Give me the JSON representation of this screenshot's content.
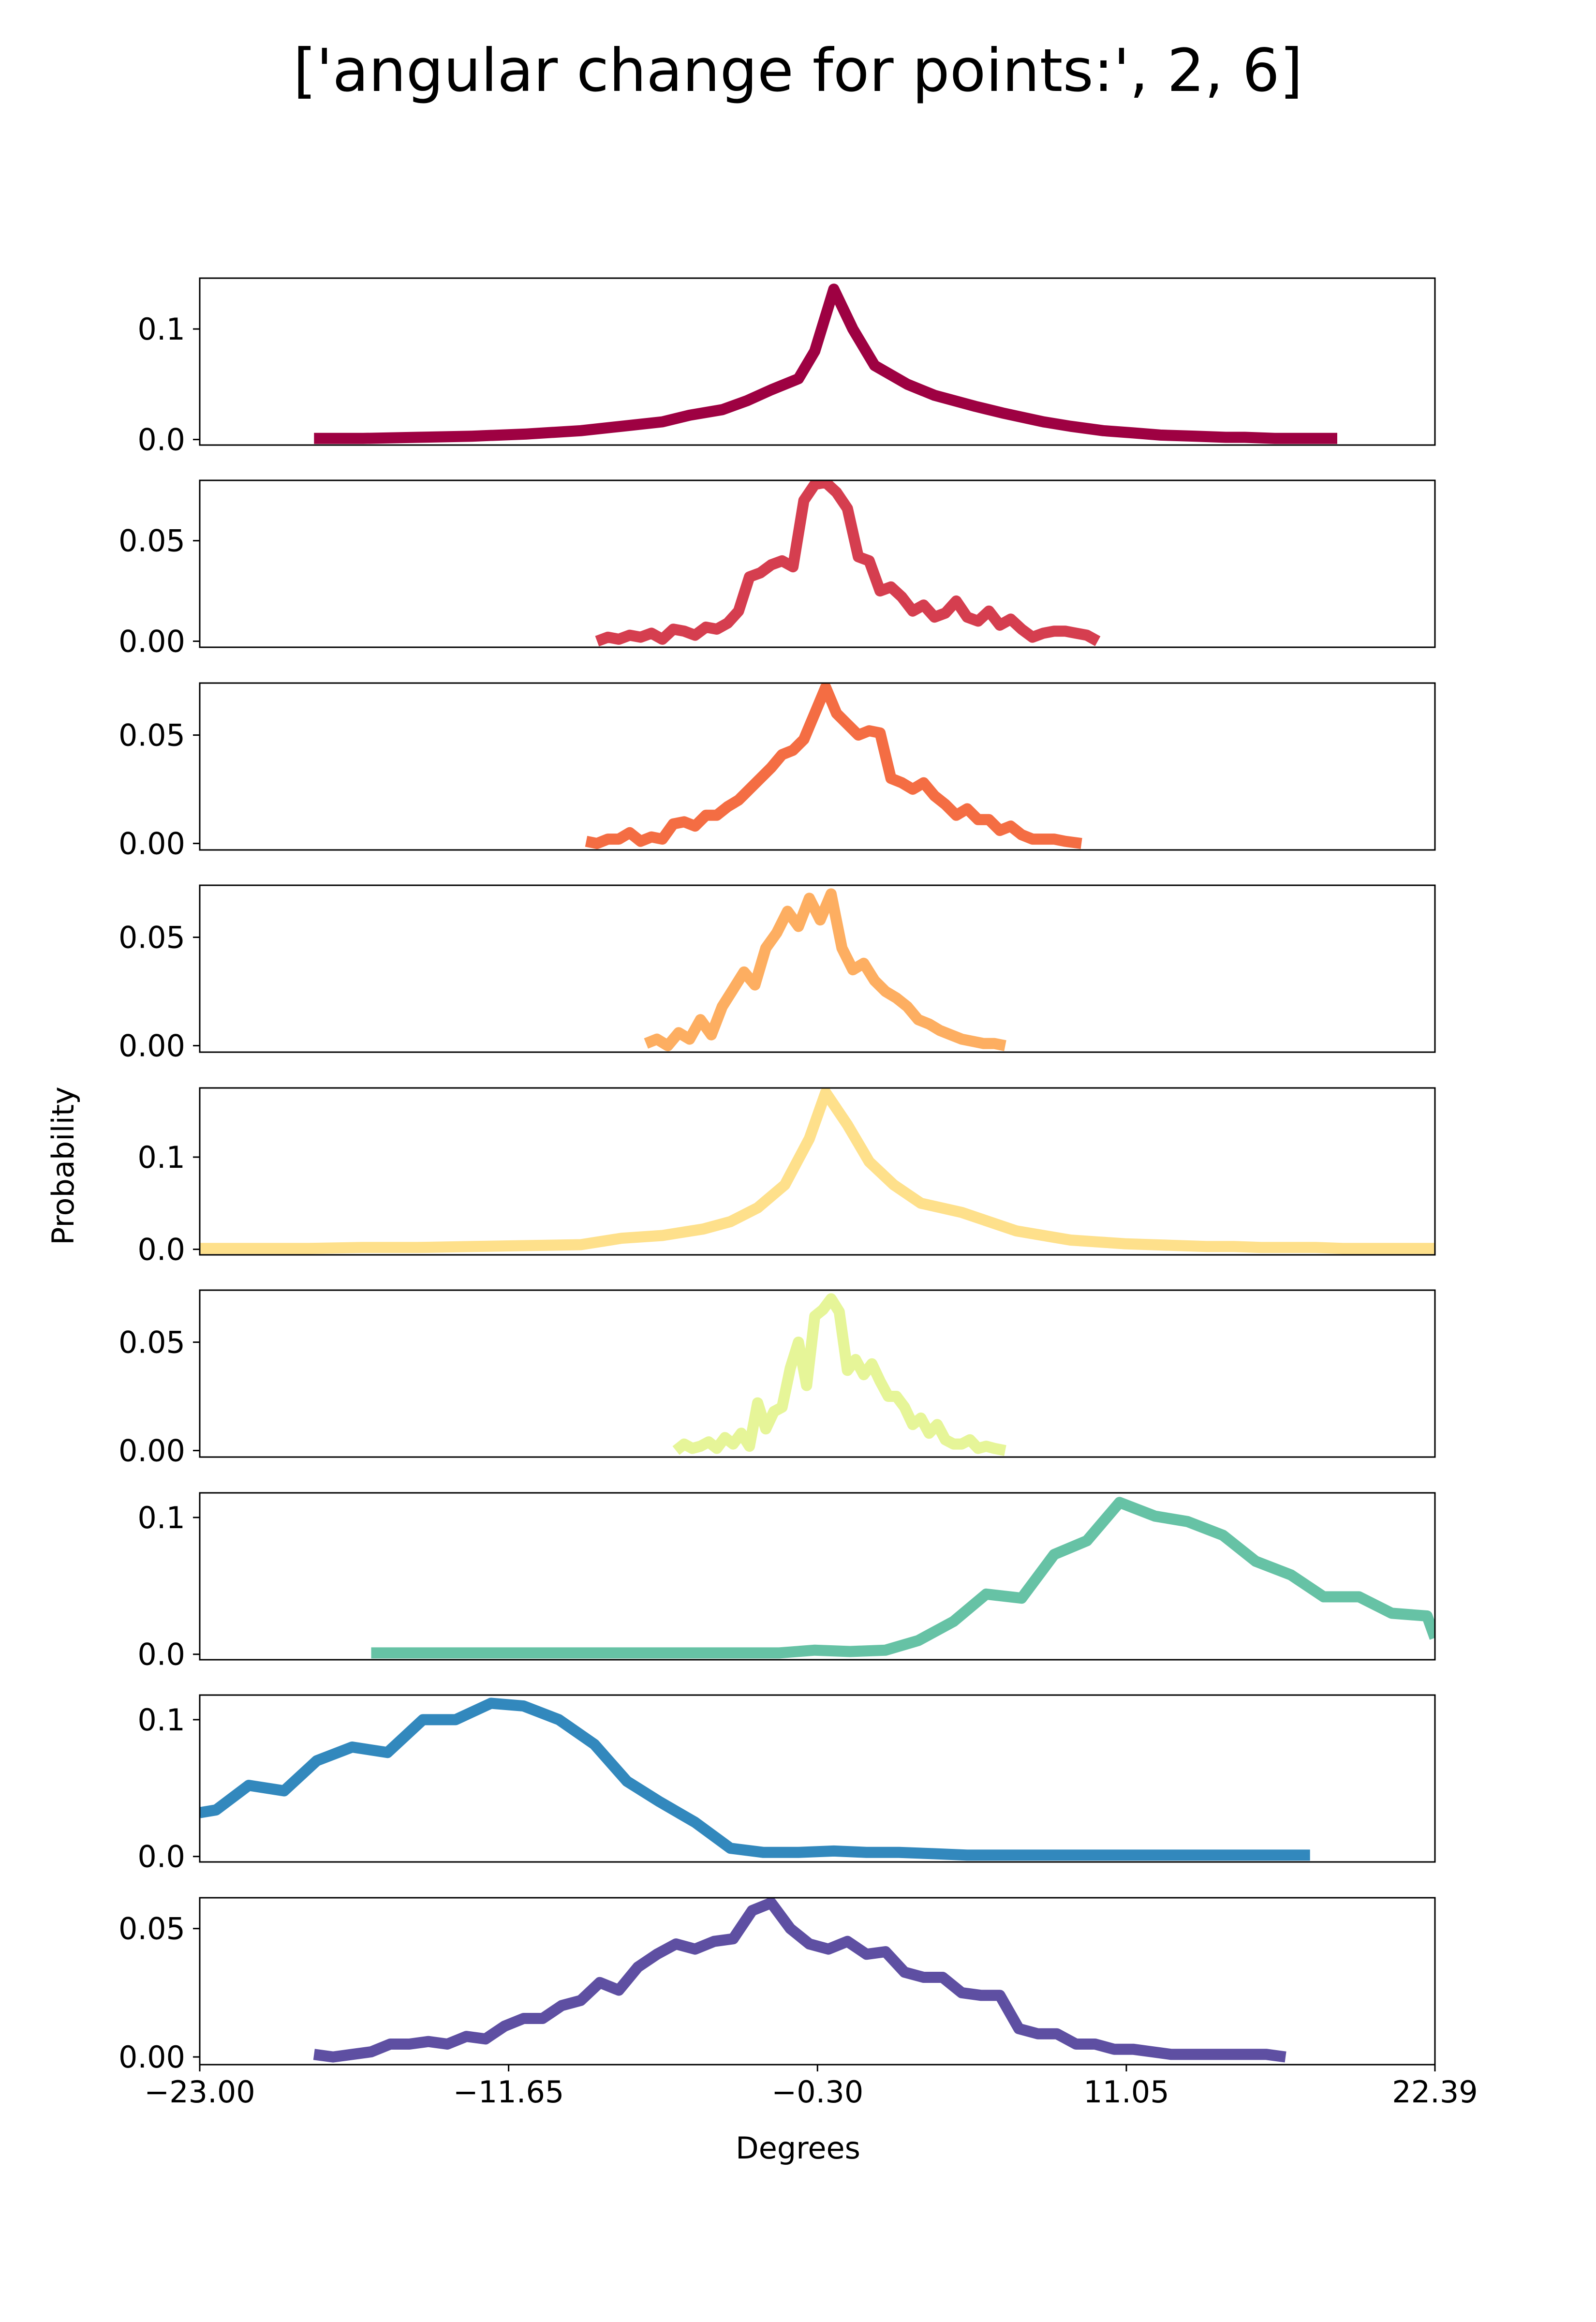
{
  "chart_data": {
    "type": "line",
    "title": "['angular change for points:', 2, 6]",
    "xlabel": "Degrees",
    "ylabel": "Probability",
    "xlim": [
      -23.0,
      22.39
    ],
    "x_ticks": [
      "−23.00",
      "−11.65",
      "−0.30",
      "11.05",
      "22.39"
    ],
    "x_tick_values": [
      -23.0,
      -11.65,
      -0.3,
      11.05,
      22.39
    ],
    "grid": false,
    "legend": "none",
    "panels": [
      {
        "color": "#9e0142",
        "ylim": [
          -0.005,
          0.146
        ],
        "y_ticks": [
          {
            "value": 0.0,
            "label": "0.0"
          },
          {
            "value": 0.1,
            "label": "0.1"
          }
        ],
        "x": [
          -18.8,
          -17.0,
          -15.0,
          -13.0,
          -11.0,
          -9.0,
          -7.5,
          -6.0,
          -5.0,
          -3.8,
          -2.9,
          -2.0,
          -1.0,
          -0.4,
          0.3,
          1.0,
          1.8,
          3.0,
          4.0,
          5.5,
          6.5,
          8.0,
          9.0,
          10.2,
          11.3,
          12.3,
          13.6,
          14.7,
          15.4,
          16.5,
          17.5,
          18.8
        ],
        "y": [
          0.001,
          0.001,
          0.002,
          0.003,
          0.005,
          0.008,
          0.012,
          0.016,
          0.022,
          0.027,
          0.035,
          0.045,
          0.055,
          0.08,
          0.136,
          0.1,
          0.067,
          0.05,
          0.04,
          0.03,
          0.024,
          0.016,
          0.012,
          0.008,
          0.006,
          0.004,
          0.003,
          0.002,
          0.002,
          0.001,
          0.001,
          0.001
        ]
      },
      {
        "color": "#d53e4f",
        "ylim": [
          -0.003,
          0.08
        ],
        "y_ticks": [
          {
            "value": 0.0,
            "label": "0.00"
          },
          {
            "value": 0.05,
            "label": "0.05"
          }
        ],
        "x": [
          -8.4,
          -8.0,
          -7.6,
          -7.2,
          -6.8,
          -6.4,
          -6.0,
          -5.6,
          -5.2,
          -4.8,
          -4.4,
          -4.0,
          -3.6,
          -3.2,
          -2.8,
          -2.4,
          -2.0,
          -1.6,
          -1.2,
          -0.8,
          -0.4,
          0.0,
          0.4,
          0.8,
          1.2,
          1.6,
          2.0,
          2.4,
          2.8,
          3.2,
          3.6,
          4.0,
          4.4,
          4.8,
          5.2,
          5.6,
          6.0,
          6.4,
          6.8,
          7.2,
          7.6,
          8.0,
          8.4,
          8.8,
          9.2,
          9.6,
          10.0
        ],
        "y": [
          0.0,
          0.002,
          0.001,
          0.003,
          0.002,
          0.004,
          0.001,
          0.006,
          0.005,
          0.003,
          0.007,
          0.006,
          0.009,
          0.015,
          0.032,
          0.034,
          0.038,
          0.04,
          0.037,
          0.07,
          0.078,
          0.079,
          0.074,
          0.066,
          0.042,
          0.04,
          0.025,
          0.027,
          0.022,
          0.015,
          0.018,
          0.012,
          0.014,
          0.02,
          0.012,
          0.01,
          0.015,
          0.008,
          0.011,
          0.006,
          0.002,
          0.004,
          0.005,
          0.005,
          0.004,
          0.003,
          0.0
        ]
      },
      {
        "color": "#f46d43",
        "ylim": [
          -0.003,
          0.074
        ],
        "y_ticks": [
          {
            "value": 0.0,
            "label": "0.00"
          },
          {
            "value": 0.05,
            "label": "0.05"
          }
        ],
        "x": [
          -8.8,
          -8.4,
          -8.0,
          -7.6,
          -7.2,
          -6.8,
          -6.4,
          -6.0,
          -5.6,
          -5.2,
          -4.8,
          -4.4,
          -4.0,
          -3.6,
          -3.2,
          -2.8,
          -2.4,
          -2.0,
          -1.6,
          -1.2,
          -0.8,
          -0.4,
          0.0,
          0.4,
          0.8,
          1.2,
          1.6,
          2.0,
          2.4,
          2.8,
          3.2,
          3.6,
          4.0,
          4.4,
          4.8,
          5.2,
          5.6,
          6.0,
          6.4,
          6.8,
          7.2,
          7.6,
          8.0,
          8.4,
          8.8,
          9.4
        ],
        "y": [
          0.001,
          0.0,
          0.002,
          0.002,
          0.005,
          0.001,
          0.003,
          0.002,
          0.009,
          0.01,
          0.008,
          0.013,
          0.013,
          0.017,
          0.02,
          0.025,
          0.03,
          0.035,
          0.041,
          0.043,
          0.048,
          0.06,
          0.072,
          0.06,
          0.055,
          0.05,
          0.052,
          0.051,
          0.03,
          0.028,
          0.025,
          0.028,
          0.022,
          0.018,
          0.013,
          0.016,
          0.011,
          0.011,
          0.006,
          0.008,
          0.004,
          0.002,
          0.002,
          0.002,
          0.001,
          0.0
        ]
      },
      {
        "color": "#fdae61",
        "ylim": [
          -0.003,
          0.074
        ],
        "y_ticks": [
          {
            "value": 0.0,
            "label": "0.00"
          },
          {
            "value": 0.05,
            "label": "0.05"
          }
        ],
        "x": [
          -6.6,
          -6.2,
          -5.8,
          -5.4,
          -5.0,
          -4.6,
          -4.2,
          -3.8,
          -3.4,
          -3.0,
          -2.6,
          -2.2,
          -1.8,
          -1.4,
          -1.0,
          -0.6,
          -0.2,
          0.2,
          0.6,
          1.0,
          1.4,
          1.8,
          2.2,
          2.6,
          3.0,
          3.4,
          3.8,
          4.2,
          4.6,
          5.0,
          5.4,
          5.8,
          6.2,
          6.6
        ],
        "y": [
          0.001,
          0.003,
          0.0,
          0.006,
          0.003,
          0.012,
          0.005,
          0.018,
          0.026,
          0.034,
          0.028,
          0.045,
          0.052,
          0.062,
          0.055,
          0.068,
          0.058,
          0.07,
          0.045,
          0.035,
          0.038,
          0.03,
          0.025,
          0.022,
          0.018,
          0.012,
          0.01,
          0.007,
          0.005,
          0.003,
          0.002,
          0.001,
          0.001,
          0.0
        ]
      },
      {
        "color": "#fee08b",
        "ylim": [
          -0.006,
          0.175
        ],
        "y_ticks": [
          {
            "value": 0.0,
            "label": "0.0"
          },
          {
            "value": 0.1,
            "label": "0.1"
          }
        ],
        "x": [
          -23.0,
          -21.0,
          -19.0,
          -17.0,
          -15.0,
          -13.0,
          -11.0,
          -9.0,
          -7.5,
          -6.0,
          -4.5,
          -3.5,
          -2.5,
          -1.5,
          -0.6,
          0.0,
          0.8,
          1.6,
          2.5,
          3.5,
          5.0,
          6.0,
          7.0,
          8.0,
          9.0,
          10.0,
          11.0,
          12.0,
          13.0,
          14.0,
          15.0,
          16.0,
          17.0,
          18.0,
          19.0,
          20.0,
          21.0,
          22.39
        ],
        "y": [
          0.001,
          0.001,
          0.001,
          0.002,
          0.002,
          0.003,
          0.004,
          0.005,
          0.012,
          0.015,
          0.022,
          0.03,
          0.045,
          0.07,
          0.12,
          0.17,
          0.135,
          0.095,
          0.07,
          0.05,
          0.04,
          0.03,
          0.02,
          0.015,
          0.01,
          0.008,
          0.006,
          0.005,
          0.004,
          0.003,
          0.003,
          0.002,
          0.002,
          0.002,
          0.001,
          0.001,
          0.001,
          0.001
        ]
      },
      {
        "color": "#e6f598",
        "ylim": [
          -0.003,
          0.074
        ],
        "y_ticks": [
          {
            "value": 0.0,
            "label": "0.00"
          },
          {
            "value": 0.05,
            "label": "0.05"
          }
        ],
        "x": [
          -5.5,
          -5.2,
          -4.9,
          -4.6,
          -4.3,
          -4.0,
          -3.7,
          -3.4,
          -3.1,
          -2.8,
          -2.5,
          -2.2,
          -1.9,
          -1.6,
          -1.3,
          -1.0,
          -0.7,
          -0.4,
          -0.1,
          0.2,
          0.5,
          0.8,
          1.1,
          1.4,
          1.7,
          2.0,
          2.3,
          2.6,
          2.9,
          3.2,
          3.5,
          3.8,
          4.1,
          4.4,
          4.7,
          5.0,
          5.3,
          5.6,
          5.9,
          6.2,
          6.6
        ],
        "y": [
          0.0,
          0.003,
          0.001,
          0.002,
          0.004,
          0.001,
          0.006,
          0.003,
          0.008,
          0.002,
          0.022,
          0.01,
          0.018,
          0.02,
          0.038,
          0.05,
          0.03,
          0.062,
          0.065,
          0.07,
          0.064,
          0.037,
          0.042,
          0.035,
          0.04,
          0.032,
          0.025,
          0.025,
          0.02,
          0.012,
          0.015,
          0.008,
          0.012,
          0.005,
          0.003,
          0.003,
          0.005,
          0.001,
          0.002,
          0.001,
          0.0
        ]
      },
      {
        "color": "#66c2a5",
        "ylim": [
          -0.004,
          0.118
        ],
        "y_ticks": [
          {
            "value": 0.0,
            "label": "0.0"
          },
          {
            "value": 0.1,
            "label": "0.1"
          }
        ],
        "x": [
          -16.7,
          -15.5,
          -14.2,
          -12.9,
          -11.6,
          -10.4,
          -9.1,
          -7.9,
          -6.6,
          -5.4,
          -4.1,
          -2.9,
          -1.7,
          -0.4,
          0.9,
          2.2,
          3.4,
          4.7,
          5.9,
          7.2,
          8.4,
          9.6,
          10.8,
          12.1,
          13.3,
          14.6,
          15.8,
          17.1,
          18.3,
          19.6,
          20.8,
          22.1,
          22.39
        ],
        "y": [
          0.001,
          0.001,
          0.001,
          0.001,
          0.001,
          0.001,
          0.001,
          0.001,
          0.001,
          0.001,
          0.001,
          0.001,
          0.001,
          0.003,
          0.002,
          0.003,
          0.01,
          0.024,
          0.044,
          0.041,
          0.073,
          0.083,
          0.111,
          0.101,
          0.097,
          0.087,
          0.068,
          0.058,
          0.042,
          0.042,
          0.03,
          0.028,
          0.012
        ]
      },
      {
        "color": "#3288bd",
        "ylim": [
          -0.004,
          0.118
        ],
        "y_ticks": [
          {
            "value": 0.0,
            "label": "0.0"
          },
          {
            "value": 0.1,
            "label": "0.1"
          }
        ],
        "x": [
          -23.0,
          -22.4,
          -21.2,
          -19.9,
          -18.7,
          -17.4,
          -16.1,
          -14.8,
          -13.6,
          -12.3,
          -11.1,
          -9.8,
          -8.5,
          -7.3,
          -6.1,
          -4.8,
          -3.5,
          -2.3,
          -1.0,
          0.3,
          1.5,
          2.7,
          4.0,
          5.2,
          6.5,
          7.7,
          9.0,
          10.3,
          11.5,
          12.8,
          14.0,
          15.3,
          16.5,
          17.8
        ],
        "y": [
          0.032,
          0.034,
          0.052,
          0.048,
          0.07,
          0.08,
          0.076,
          0.1,
          0.1,
          0.112,
          0.11,
          0.1,
          0.082,
          0.055,
          0.04,
          0.025,
          0.006,
          0.003,
          0.003,
          0.004,
          0.003,
          0.003,
          0.002,
          0.001,
          0.001,
          0.001,
          0.001,
          0.001,
          0.001,
          0.001,
          0.001,
          0.001,
          0.001,
          0.001
        ]
      },
      {
        "color": "#5e4fa2",
        "ylim": [
          -0.003,
          0.062
        ],
        "y_ticks": [
          {
            "value": 0.0,
            "label": "0.00"
          },
          {
            "value": 0.05,
            "label": "0.05"
          }
        ],
        "x": [
          -18.8,
          -18.1,
          -17.4,
          -16.7,
          -16.0,
          -15.3,
          -14.6,
          -13.9,
          -13.2,
          -12.5,
          -11.8,
          -11.1,
          -10.4,
          -9.7,
          -9.0,
          -8.3,
          -7.6,
          -6.9,
          -6.2,
          -5.5,
          -4.8,
          -4.1,
          -3.4,
          -2.7,
          -2.0,
          -1.3,
          -0.6,
          0.1,
          0.8,
          1.5,
          2.2,
          2.9,
          3.6,
          4.3,
          5.0,
          5.7,
          6.4,
          7.1,
          7.8,
          8.5,
          9.2,
          9.9,
          10.6,
          11.3,
          12.0,
          12.7,
          13.4,
          14.1,
          14.8,
          15.5,
          16.2,
          16.9
        ],
        "y": [
          0.001,
          0.0,
          0.001,
          0.002,
          0.005,
          0.005,
          0.006,
          0.005,
          0.008,
          0.007,
          0.012,
          0.015,
          0.015,
          0.02,
          0.022,
          0.029,
          0.026,
          0.035,
          0.04,
          0.044,
          0.042,
          0.045,
          0.046,
          0.057,
          0.06,
          0.05,
          0.044,
          0.042,
          0.045,
          0.04,
          0.041,
          0.033,
          0.031,
          0.031,
          0.025,
          0.024,
          0.024,
          0.011,
          0.009,
          0.009,
          0.005,
          0.005,
          0.003,
          0.003,
          0.002,
          0.001,
          0.001,
          0.001,
          0.001,
          0.001,
          0.001,
          0.0
        ]
      }
    ]
  }
}
